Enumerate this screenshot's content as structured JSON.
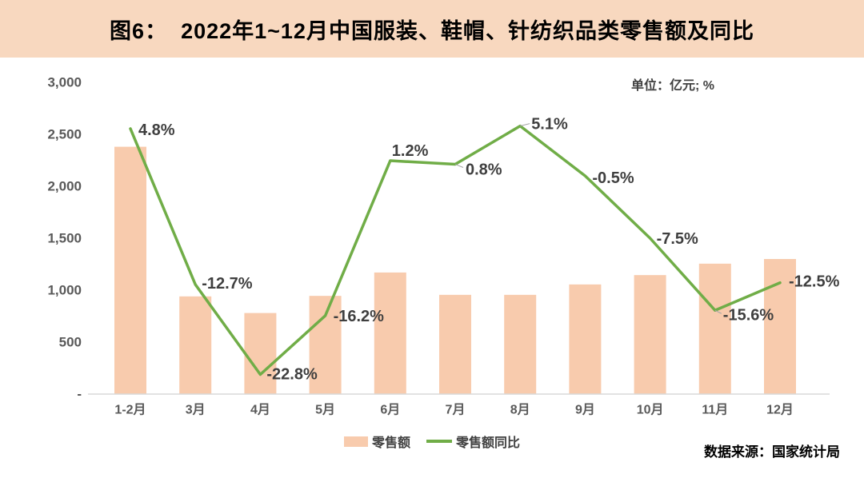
{
  "header": {
    "title": "图6：  2022年1~12月中国服装、鞋帽、针纺织品类零售额及同比"
  },
  "unit_label": "单位：亿元; %",
  "source": "数据来源：国家统计局",
  "legend": {
    "items": [
      {
        "label": "零售额",
        "swatch": "bar"
      },
      {
        "label": "零售额同比",
        "swatch": "line"
      }
    ]
  },
  "colors": {
    "header_bg": "#F8D8BF",
    "bar": "#F8CBAD",
    "line": "#70AD47",
    "title_text": "#000000",
    "axis_label": "#595959",
    "data_label": "#3F3F3F",
    "axis_line": "#D9D9D9",
    "leader_line": "#A6A6A6",
    "unit_text": "#404040",
    "legend_text": "#404040",
    "source_text": "#000000",
    "background": "#FFFFFF"
  },
  "chart_data": {
    "type": "bar",
    "title": "2022年1~12月中国服装、鞋帽、针纺织品类零售额及同比",
    "categories": [
      "1-2月",
      "3月",
      "4月",
      "5月",
      "6月",
      "7月",
      "8月",
      "9月",
      "10月",
      "11月",
      "12月"
    ],
    "series": [
      {
        "name": "零售额",
        "type": "bar",
        "axis": "primary",
        "unit": "亿元",
        "values": [
          2380,
          940,
          780,
          945,
          1170,
          955,
          955,
          1055,
          1145,
          1255,
          1300
        ]
      },
      {
        "name": "零售额同比",
        "type": "line",
        "axis": "secondary",
        "unit": "%",
        "values": [
          4.8,
          -12.7,
          -22.8,
          -16.2,
          1.2,
          0.8,
          5.1,
          -0.5,
          -7.5,
          -15.6,
          -12.5
        ],
        "labels": [
          "4.8%",
          "-12.7%",
          "-22.8%",
          "-16.2%",
          "1.2%",
          "0.8%",
          "5.1%",
          "-0.5%",
          "-7.5%",
          "-15.6%",
          "-12.5%"
        ]
      }
    ],
    "xlabel": "",
    "ylabel": "",
    "y_axis": {
      "ticks": [
        "3,000",
        "2,500",
        "2,000",
        "1,500",
        "1,000",
        "500",
        "-"
      ],
      "range": [
        0,
        3000
      ]
    },
    "y2_axis": {
      "range": [
        -25,
        10
      ],
      "visible": false
    },
    "grid": false,
    "legend_position": "bottom"
  }
}
